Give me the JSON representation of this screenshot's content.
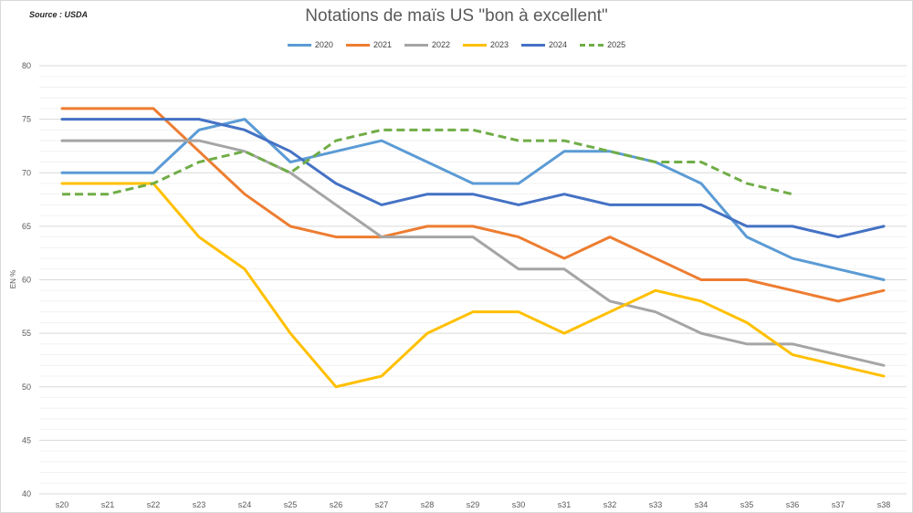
{
  "source": "Source : USDA",
  "chart_data": {
    "type": "line",
    "title": "Notations de maïs US \"bon à excellent\"",
    "ylabel": "EN %",
    "xlabel": "",
    "ylim": [
      40,
      80
    ],
    "yticks": [
      40,
      45,
      50,
      55,
      60,
      65,
      70,
      75,
      80
    ],
    "grid": true,
    "legend": "top",
    "categories": [
      "s20",
      "s21",
      "s22",
      "s23",
      "s24",
      "s25",
      "s26",
      "s27",
      "s28",
      "s29",
      "s30",
      "s31",
      "s32",
      "s33",
      "s34",
      "s35",
      "s36",
      "s37",
      "s38"
    ],
    "series": [
      {
        "name": "2020",
        "color": "#5b9bd5",
        "dash": false,
        "values": [
          70,
          70,
          70,
          74,
          75,
          71,
          72,
          73,
          71,
          69,
          69,
          72,
          72,
          71,
          69,
          64,
          62,
          61,
          60
        ]
      },
      {
        "name": "2021",
        "color": "#ed7d31",
        "dash": false,
        "values": [
          76,
          76,
          76,
          72,
          68,
          65,
          64,
          64,
          65,
          65,
          64,
          62,
          64,
          62,
          60,
          60,
          59,
          58,
          59
        ]
      },
      {
        "name": "2022",
        "color": "#a5a5a5",
        "dash": false,
        "values": [
          73,
          73,
          73,
          73,
          72,
          70,
          67,
          64,
          64,
          64,
          61,
          61,
          58,
          57,
          55,
          54,
          54,
          53,
          52
        ]
      },
      {
        "name": "2023",
        "color": "#ffc000",
        "dash": false,
        "values": [
          69,
          69,
          69,
          64,
          61,
          55,
          50,
          51,
          55,
          57,
          57,
          55,
          57,
          59,
          58,
          56,
          53,
          52,
          51
        ]
      },
      {
        "name": "2024",
        "color": "#4472c4",
        "dash": false,
        "values": [
          75,
          75,
          75,
          75,
          74,
          72,
          69,
          67,
          68,
          68,
          67,
          68,
          67,
          67,
          67,
          65,
          65,
          64,
          65
        ]
      },
      {
        "name": "2025",
        "color": "#70ad47",
        "dash": true,
        "values": [
          68,
          68,
          69,
          71,
          72,
          70,
          73,
          74,
          74,
          74,
          73,
          73,
          72,
          71,
          71,
          69,
          68,
          null,
          null
        ]
      }
    ]
  }
}
